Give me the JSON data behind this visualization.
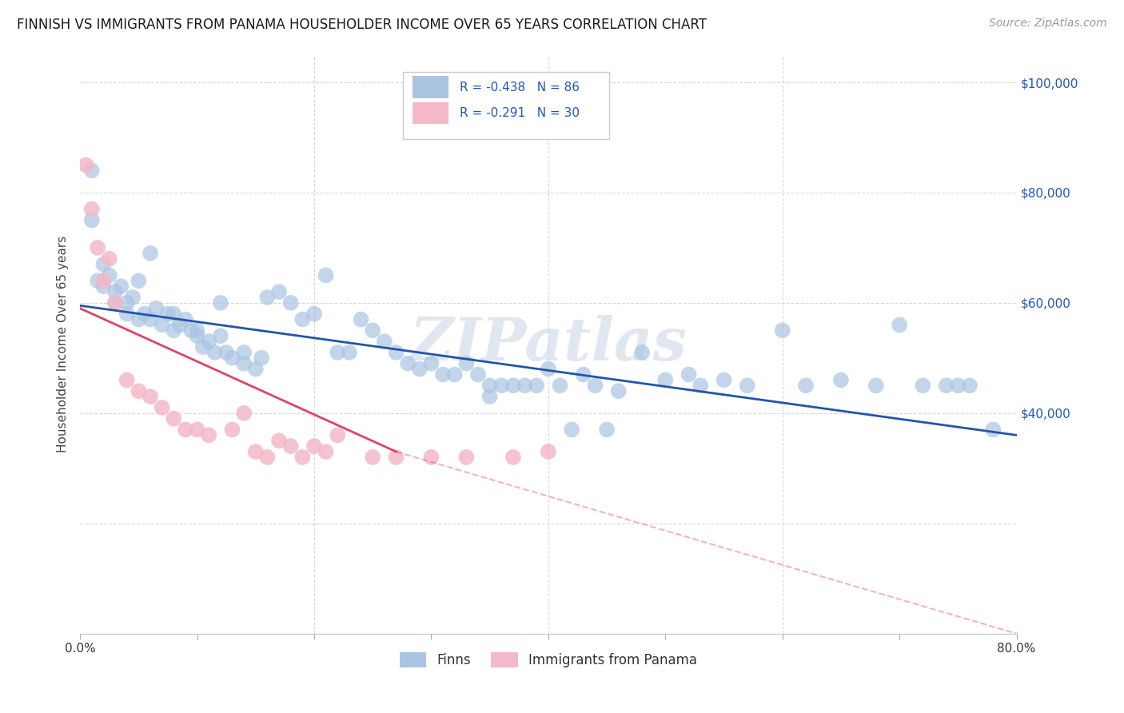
{
  "title": "FINNISH VS IMMIGRANTS FROM PANAMA HOUSEHOLDER INCOME OVER 65 YEARS CORRELATION CHART",
  "source": "Source: ZipAtlas.com",
  "ylabel": "Householder Income Over 65 years",
  "watermark": "ZIPatlas",
  "finns_color": "#aac4e2",
  "panama_color": "#f4b8c8",
  "finns_line_color": "#2255aa",
  "panama_line_color": "#dd4466",
  "background_color": "#ffffff",
  "grid_color": "#d8d8d8",
  "finns_x": [
    1.0,
    1.5,
    2.0,
    2.5,
    3.0,
    3.5,
    4.0,
    4.0,
    4.5,
    5.0,
    5.5,
    6.0,
    6.5,
    7.0,
    7.5,
    8.0,
    8.5,
    9.0,
    9.5,
    10.0,
    10.5,
    11.0,
    11.5,
    12.0,
    12.5,
    13.0,
    14.0,
    14.0,
    15.0,
    15.5,
    16.0,
    17.0,
    18.0,
    19.0,
    20.0,
    21.0,
    22.0,
    23.0,
    24.0,
    25.0,
    26.0,
    27.0,
    28.0,
    29.0,
    30.0,
    31.0,
    32.0,
    33.0,
    34.0,
    35.0,
    35.0,
    36.0,
    37.0,
    38.0,
    39.0,
    40.0,
    41.0,
    42.0,
    43.0,
    44.0,
    45.0,
    46.0,
    48.0,
    50.0,
    52.0,
    53.0,
    55.0,
    57.0,
    60.0,
    62.0,
    65.0,
    68.0,
    70.0,
    72.0,
    74.0,
    75.0,
    76.0,
    78.0,
    1.0,
    2.0,
    3.0,
    5.0,
    6.0,
    8.0,
    10.0,
    12.0
  ],
  "finns_y": [
    75000,
    64000,
    63000,
    65000,
    62000,
    63000,
    60000,
    58000,
    61000,
    57000,
    58000,
    57000,
    59000,
    56000,
    58000,
    55000,
    56000,
    57000,
    55000,
    54000,
    52000,
    53000,
    51000,
    54000,
    51000,
    50000,
    49000,
    51000,
    48000,
    50000,
    61000,
    62000,
    60000,
    57000,
    58000,
    65000,
    51000,
    51000,
    57000,
    55000,
    53000,
    51000,
    49000,
    48000,
    49000,
    47000,
    47000,
    49000,
    47000,
    45000,
    43000,
    45000,
    45000,
    45000,
    45000,
    48000,
    45000,
    37000,
    47000,
    45000,
    37000,
    44000,
    51000,
    46000,
    47000,
    45000,
    46000,
    45000,
    55000,
    45000,
    46000,
    45000,
    56000,
    45000,
    45000,
    45000,
    45000,
    37000,
    84000,
    67000,
    60000,
    64000,
    69000,
    58000,
    55000,
    60000
  ],
  "panama_x": [
    0.5,
    1.0,
    1.5,
    2.0,
    2.5,
    3.0,
    4.0,
    5.0,
    6.0,
    7.0,
    8.0,
    9.0,
    10.0,
    11.0,
    13.0,
    14.0,
    15.0,
    16.0,
    17.0,
    18.0,
    19.0,
    20.0,
    21.0,
    22.0,
    25.0,
    27.0,
    30.0,
    33.0,
    37.0,
    40.0
  ],
  "panama_y": [
    85000,
    77000,
    70000,
    64000,
    68000,
    60000,
    46000,
    44000,
    43000,
    41000,
    39000,
    37000,
    37000,
    36000,
    37000,
    40000,
    33000,
    32000,
    35000,
    34000,
    32000,
    34000,
    33000,
    36000,
    32000,
    32000,
    32000,
    32000,
    32000,
    33000
  ],
  "xlim": [
    0,
    80
  ],
  "ylim": [
    0,
    105000
  ],
  "finns_line_x0": 0,
  "finns_line_x1": 80,
  "finns_line_y0": 59500,
  "finns_line_y1": 36000,
  "panama_line_x0": 0,
  "panama_line_x1": 27,
  "panama_line_y0": 59000,
  "panama_line_y1": 33000,
  "panama_dash_x0": 27,
  "panama_dash_x1": 80,
  "panama_dash_y0": 33000,
  "panama_dash_y1": 0,
  "title_fontsize": 12,
  "axis_label_fontsize": 11,
  "tick_fontsize": 11,
  "legend_r_finns": "-0.438",
  "legend_n_finns": "86",
  "legend_r_panama": "-0.291",
  "legend_n_panama": "30"
}
